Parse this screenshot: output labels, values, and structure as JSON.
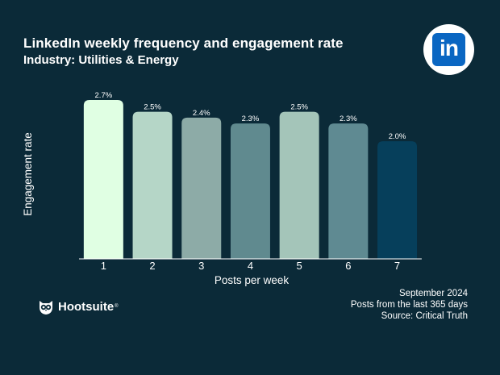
{
  "header": {
    "title": "LinkedIn weekly frequency  and engagement rate",
    "subtitle": "Industry: Utilities & Energy"
  },
  "logo": {
    "icon": "linkedin-icon",
    "text": "in",
    "color": "#0a66c2"
  },
  "footer": {
    "date": "September 2024",
    "range": "Posts from the last 365 days",
    "source": "Source: Critical Truth"
  },
  "brand": {
    "name": "Hootsuite",
    "mark": "®",
    "icon": "hootsuite-owl-icon"
  },
  "chart_data": {
    "type": "bar",
    "categories": [
      "1",
      "2",
      "3",
      "4",
      "5",
      "6",
      "7"
    ],
    "values": [
      2.7,
      2.5,
      2.4,
      2.3,
      2.5,
      2.3,
      2.0
    ],
    "labels": [
      "2.7%",
      "2.5%",
      "2.4%",
      "2.3%",
      "2.5%",
      "2.3%",
      "2.0%"
    ],
    "colors": [
      "#e0ffe3",
      "#b5d6c7",
      "#8daba7",
      "#608a8f",
      "#a4c5b9",
      "#5f8a92",
      "#063f5b"
    ],
    "xlabel": "Posts per week",
    "ylabel": "Engagement rate",
    "ylim": [
      0,
      2.7
    ],
    "grid": false
  }
}
